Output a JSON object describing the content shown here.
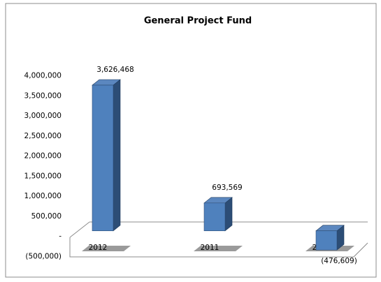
{
  "chart_data": {
    "type": "bar",
    "title": "General Project Fund",
    "categories": [
      "2012",
      "2011",
      "2010"
    ],
    "values": [
      3626468,
      693569,
      -476609
    ],
    "value_labels": [
      "3,626,468",
      "693,569",
      "(476,609)"
    ],
    "color": "#4f81bd",
    "ylim": [
      -500000,
      4000000
    ],
    "yticks": [
      {
        "value": -500000,
        "label": "(500,000)"
      },
      {
        "value": 0,
        "label": "-"
      },
      {
        "value": 500000,
        "label": "500,000"
      },
      {
        "value": 1000000,
        "label": "1,000,000"
      },
      {
        "value": 1500000,
        "label": "1,500,000"
      },
      {
        "value": 2000000,
        "label": "2,000,000"
      },
      {
        "value": 2500000,
        "label": "2,500,000"
      },
      {
        "value": 3000000,
        "label": "3,000,000"
      },
      {
        "value": 3500000,
        "label": "3,500,000"
      },
      {
        "value": 4000000,
        "label": "4,000,000"
      }
    ],
    "grid": false
  }
}
